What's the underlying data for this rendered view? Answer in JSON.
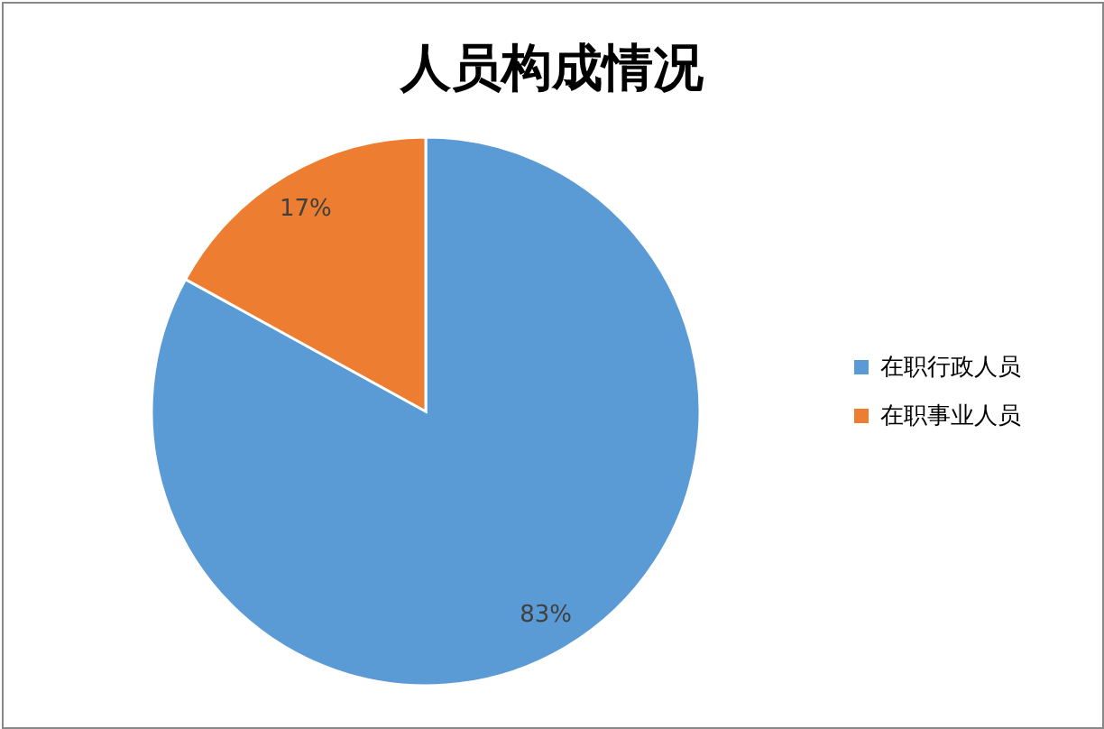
{
  "chart_data": {
    "type": "pie",
    "title": "人员构成情况",
    "categories": [
      "在职行政人员",
      "在职事业人员"
    ],
    "values": [
      83,
      17
    ],
    "colors": [
      "#5b9bd5",
      "#ed7d31"
    ],
    "value_labels": [
      "83%",
      "17%"
    ],
    "legend": "right"
  }
}
